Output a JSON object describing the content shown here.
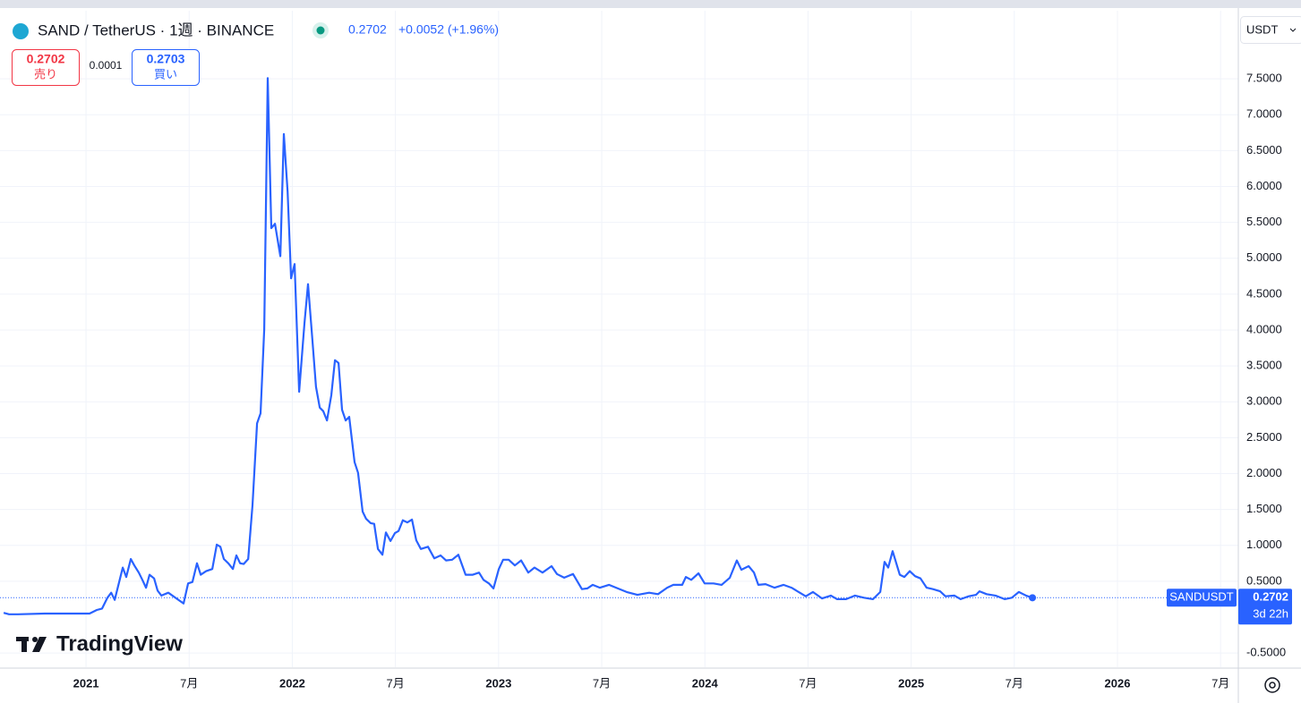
{
  "header": {
    "symbol": "SAND / TetherUS · 1週 · BINANCE",
    "price": "0.2702",
    "change": "+0.0052 (+1.96%)",
    "sell_price": "0.2702",
    "sell_label": "売り",
    "spread": "0.0001",
    "buy_price": "0.2703",
    "buy_label": "買い",
    "currency": "USDT",
    "logo": "TradingView"
  },
  "chart_data": {
    "type": "line",
    "x": [
      2020.601,
      2020.627,
      2020.67,
      2020.8,
      2020.931,
      2021.017,
      2021.052,
      2021.078,
      2021.104,
      2021.122,
      2021.139,
      2021.178,
      2021.195,
      2021.217,
      2021.234,
      2021.256,
      2021.273,
      2021.291,
      2021.308,
      2021.33,
      2021.347,
      2021.365,
      2021.399,
      2021.443,
      2021.473,
      2021.495,
      2021.516,
      2021.538,
      2021.556,
      2021.582,
      2021.612,
      2021.634,
      2021.651,
      2021.668,
      2021.69,
      2021.712,
      2021.729,
      2021.747,
      2021.764,
      2021.786,
      2021.807,
      2021.829,
      2021.846,
      2021.864,
      2021.881,
      2021.898,
      2021.916,
      2021.942,
      2021.959,
      2021.977,
      2021.994,
      2022.011,
      2022.033,
      2022.059,
      2022.076,
      2022.094,
      2022.115,
      2022.133,
      2022.15,
      2022.168,
      2022.189,
      2022.207,
      2022.224,
      2022.241,
      2022.259,
      2022.276,
      2022.302,
      2022.319,
      2022.341,
      2022.358,
      2022.38,
      2022.397,
      2022.415,
      2022.437,
      2022.454,
      2022.476,
      2022.497,
      2022.515,
      2022.536,
      2022.558,
      2022.58,
      2022.601,
      2022.623,
      2022.658,
      2022.688,
      2022.719,
      2022.745,
      2022.775,
      2022.805,
      2022.84,
      2022.875,
      2022.905,
      2022.927,
      2022.953,
      2022.975,
      2023.001,
      2023.022,
      2023.049,
      2023.079,
      2023.109,
      2023.144,
      2023.174,
      2023.213,
      2023.257,
      2023.283,
      2023.318,
      2023.361,
      2023.404,
      2023.43,
      2023.456,
      2023.491,
      2023.535,
      2023.578,
      2023.621,
      2023.673,
      2023.73,
      2023.773,
      2023.817,
      2023.847,
      2023.89,
      2023.908,
      2023.934,
      2023.969,
      2023.999,
      2024.042,
      2024.081,
      2024.121,
      2024.155,
      2024.177,
      2024.212,
      2024.238,
      2024.259,
      2024.294,
      2024.338,
      2024.381,
      2024.42,
      2024.455,
      2024.489,
      2024.524,
      2024.568,
      2024.611,
      2024.641,
      2024.685,
      2024.728,
      2024.771,
      2024.815,
      2024.85,
      2024.871,
      2024.889,
      2024.91,
      2024.945,
      2024.967,
      2024.993,
      2025.019,
      2025.045,
      2025.075,
      2025.106,
      2025.14,
      2025.166,
      2025.21,
      2025.24,
      2025.279,
      2025.314,
      2025.331,
      2025.366,
      2025.409,
      2025.453,
      2025.488,
      2025.522,
      2025.557,
      2025.588
    ],
    "series": [
      {
        "name": "SANDUSDT",
        "color": "#2962ff",
        "values": [
          0.06,
          0.04,
          0.04,
          0.05,
          0.05,
          0.05,
          0.1,
          0.12,
          0.27,
          0.34,
          0.24,
          0.69,
          0.56,
          0.81,
          0.72,
          0.62,
          0.52,
          0.41,
          0.59,
          0.54,
          0.37,
          0.3,
          0.34,
          0.25,
          0.19,
          0.47,
          0.49,
          0.75,
          0.59,
          0.64,
          0.67,
          1.01,
          0.98,
          0.81,
          0.75,
          0.67,
          0.86,
          0.75,
          0.74,
          0.81,
          1.56,
          2.7,
          2.84,
          4.01,
          7.51,
          5.42,
          5.48,
          5.03,
          6.73,
          5.93,
          4.72,
          4.92,
          3.14,
          4.09,
          4.64,
          3.99,
          3.21,
          2.92,
          2.87,
          2.74,
          3.09,
          3.58,
          3.54,
          2.89,
          2.74,
          2.79,
          2.16,
          2.01,
          1.47,
          1.37,
          1.31,
          1.3,
          0.95,
          0.87,
          1.18,
          1.06,
          1.17,
          1.2,
          1.35,
          1.32,
          1.36,
          1.07,
          0.95,
          0.98,
          0.82,
          0.86,
          0.79,
          0.8,
          0.87,
          0.59,
          0.59,
          0.62,
          0.52,
          0.47,
          0.4,
          0.67,
          0.8,
          0.8,
          0.72,
          0.79,
          0.62,
          0.69,
          0.62,
          0.71,
          0.6,
          0.55,
          0.6,
          0.39,
          0.4,
          0.45,
          0.41,
          0.45,
          0.4,
          0.35,
          0.31,
          0.34,
          0.32,
          0.41,
          0.45,
          0.45,
          0.56,
          0.52,
          0.61,
          0.47,
          0.47,
          0.45,
          0.55,
          0.79,
          0.66,
          0.71,
          0.62,
          0.45,
          0.46,
          0.41,
          0.45,
          0.41,
          0.35,
          0.29,
          0.35,
          0.26,
          0.3,
          0.25,
          0.25,
          0.3,
          0.27,
          0.25,
          0.35,
          0.77,
          0.69,
          0.92,
          0.59,
          0.56,
          0.64,
          0.57,
          0.54,
          0.41,
          0.39,
          0.36,
          0.29,
          0.3,
          0.25,
          0.29,
          0.31,
          0.36,
          0.32,
          0.3,
          0.25,
          0.27,
          0.35,
          0.3,
          0.27
        ]
      }
    ],
    "xlim": [
      2020.583,
      2026.586
    ],
    "xticks": [
      2021,
      {
        "value": 2021.5,
        "label": "7月"
      },
      2022,
      {
        "value": 2022.5,
        "label": "7月"
      },
      2023,
      {
        "value": 2023.5,
        "label": "7月"
      },
      2024,
      {
        "value": 2024.5,
        "label": "7月"
      },
      2025,
      {
        "value": 2025.5,
        "label": "7月"
      },
      2026,
      {
        "value": 2026.5,
        "label": "7月"
      }
    ],
    "ylim": [
      -0.698,
      8.449
    ],
    "yticks": [
      {
        "value": -0.5,
        "label": "-0.5000"
      },
      {
        "value": 0.5,
        "label": "0.5000"
      },
      {
        "value": 1,
        "label": "1.0000"
      },
      {
        "value": 1.5,
        "label": "1.5000"
      },
      {
        "value": 2,
        "label": "2.0000"
      },
      {
        "value": 2.5,
        "label": "2.5000"
      },
      {
        "value": 3,
        "label": "3.0000"
      },
      {
        "value": 3.5,
        "label": "3.5000"
      },
      {
        "value": 4,
        "label": "4.0000"
      },
      {
        "value": 4.5,
        "label": "4.5000"
      },
      {
        "value": 5,
        "label": "5.0000"
      },
      {
        "value": 5.5,
        "label": "5.5000"
      },
      {
        "value": 6,
        "label": "6.0000"
      },
      {
        "value": 6.5,
        "label": "6.5000"
      },
      {
        "value": 7,
        "label": "7.0000"
      },
      {
        "value": 7.5,
        "label": "7.5000"
      }
    ],
    "grid": true,
    "last_price": {
      "symbol": "SANDUSDT",
      "value": 0.2702,
      "countdown": "3d 22h"
    }
  }
}
